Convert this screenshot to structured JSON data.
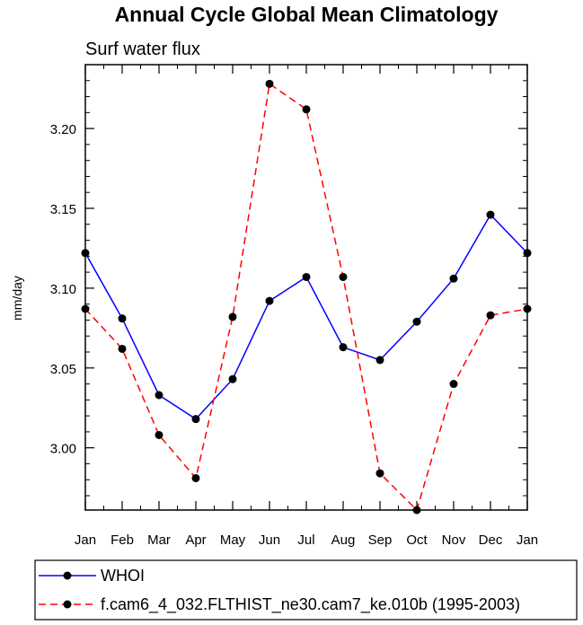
{
  "chart_data": {
    "type": "line",
    "title": "Annual Cycle Global Mean Climatology",
    "subtitle": "Surf water flux",
    "xlabel": "",
    "ylabel": "mm/day",
    "categories": [
      "Jan",
      "Feb",
      "Mar",
      "Apr",
      "May",
      "Jun",
      "Jul",
      "Aug",
      "Sep",
      "Oct",
      "Nov",
      "Dec",
      "Jan"
    ],
    "ylim": [
      2.961,
      3.24
    ],
    "yticks": [
      3.0,
      3.05,
      3.1,
      3.15,
      3.2
    ],
    "ytick_labels": [
      "3.00",
      "3.05",
      "3.10",
      "3.15",
      "3.20"
    ],
    "grid": false,
    "legend_position": "bottom",
    "series": [
      {
        "name": "WHOI",
        "color": "#0000ff",
        "dash": "solid",
        "values": [
          3.122,
          3.081,
          3.033,
          3.018,
          3.043,
          3.092,
          3.107,
          3.063,
          3.055,
          3.079,
          3.106,
          3.146,
          3.122
        ]
      },
      {
        "name": "f.cam6_4_032.FLTHIST_ne30.cam7_ke.010b (1995-2003)",
        "color": "#ff0000",
        "dash": "dashed",
        "values": [
          3.087,
          3.062,
          3.008,
          2.981,
          3.082,
          3.228,
          3.212,
          3.107,
          2.984,
          2.961,
          3.04,
          3.083,
          3.087
        ]
      }
    ]
  }
}
